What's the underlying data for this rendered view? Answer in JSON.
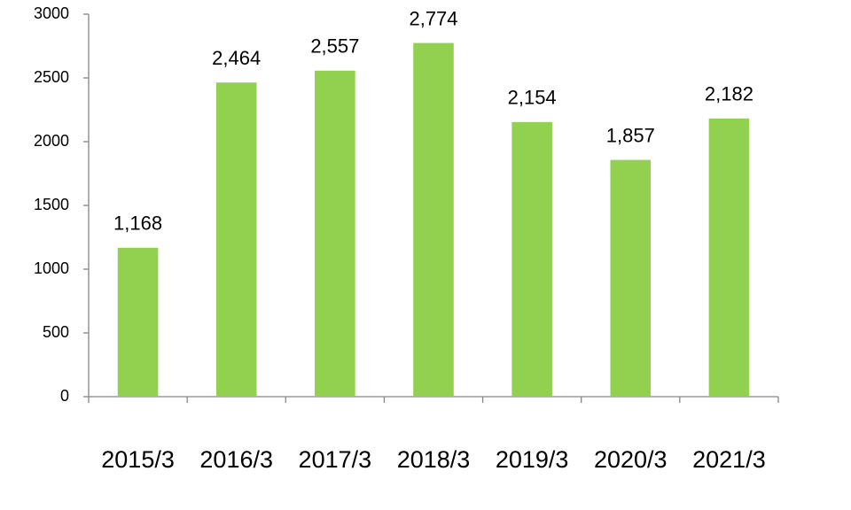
{
  "chart_data": {
    "type": "bar",
    "categories": [
      "2015/3",
      "2016/3",
      "2017/3",
      "2018/3",
      "2019/3",
      "2020/3",
      "2021/3"
    ],
    "values": [
      1168,
      2464,
      2557,
      2774,
      2154,
      1857,
      2182
    ],
    "value_labels": [
      "1,168",
      "2,464",
      "2,557",
      "2,774",
      "2,154",
      "1,857",
      "2,182"
    ],
    "color": "#92d050",
    "ylim": [
      0,
      3000
    ],
    "yticks": [
      0,
      500,
      1000,
      1500,
      2000,
      2500,
      3000
    ],
    "grid": false
  }
}
